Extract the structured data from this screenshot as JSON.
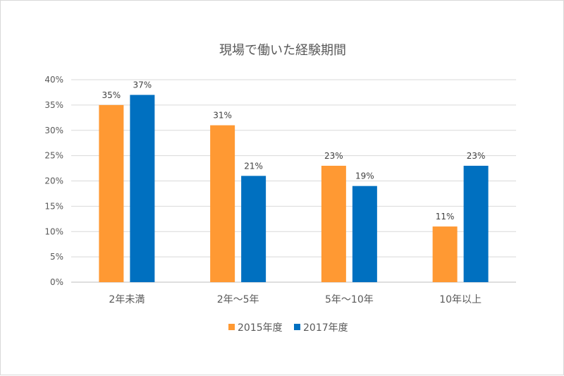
{
  "chart_data": {
    "type": "bar",
    "title": "現場で働いた経験期間",
    "categories": [
      "2年未満",
      "2年～5年",
      "5年～10年",
      "10年以上"
    ],
    "series": [
      {
        "name": "2015年度",
        "color": "#FF9933",
        "values": [
          35,
          31,
          23,
          11
        ]
      },
      {
        "name": "2017年度",
        "color": "#0070C0",
        "values": [
          37,
          21,
          19,
          23
        ]
      }
    ],
    "ylim": [
      0,
      40
    ],
    "yticks": [
      0,
      5,
      10,
      15,
      20,
      25,
      30,
      35,
      40
    ],
    "value_suffix": "%",
    "grid": true,
    "legend_position": "bottom"
  }
}
